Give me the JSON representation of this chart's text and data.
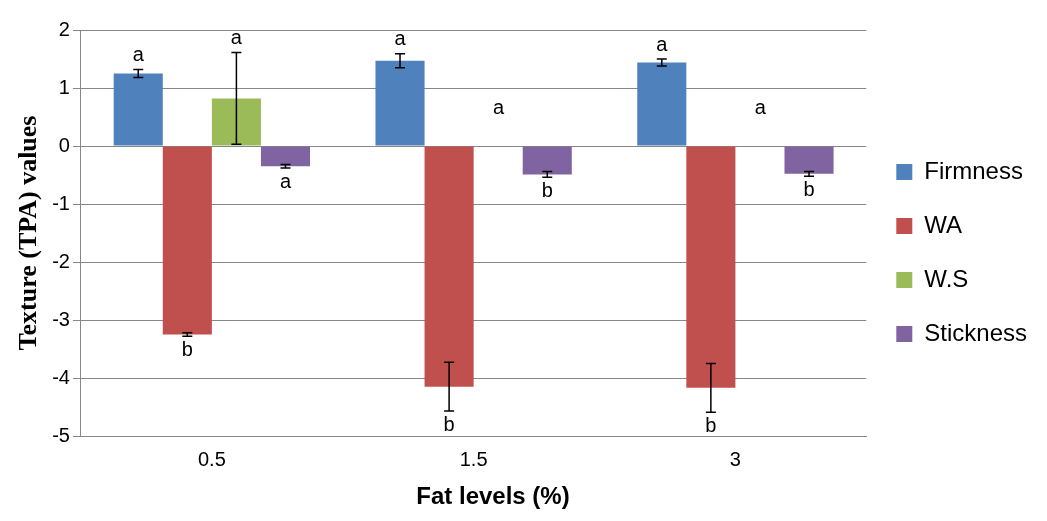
{
  "chart_data": {
    "type": "bar",
    "xlabel": "Fat levels (%)",
    "ylabel": "Texture (TPA) values",
    "categories": [
      "0.5",
      "1.5",
      "3"
    ],
    "series": [
      {
        "name": "Firmness",
        "color": "#4f81bd",
        "values": [
          1.25,
          1.47,
          1.44
        ],
        "errors": [
          0.07,
          0.12,
          0.06
        ],
        "value_labels": [
          "a",
          "a",
          "a"
        ]
      },
      {
        "name": "WA",
        "color": "#c0504d",
        "values": [
          -3.25,
          -4.15,
          -4.17
        ],
        "errors": [
          0.03,
          0.42,
          0.42
        ],
        "value_labels": [
          "b",
          "b",
          "b"
        ]
      },
      {
        "name": "W.S",
        "color": "#9bbb59",
        "values": [
          0.82,
          null,
          null
        ],
        "errors": [
          0.79,
          null,
          null
        ],
        "value_labels": [
          "a",
          null,
          null
        ]
      },
      {
        "name": "Stickness",
        "color": "#8064a2",
        "values": [
          -0.35,
          -0.49,
          -0.48
        ],
        "errors": [
          0.03,
          0.05,
          0.04
        ],
        "value_labels": [
          "a",
          "b",
          "b"
        ]
      }
    ],
    "annotations": [
      "a",
      "a"
    ],
    "ylim": [
      -5,
      2
    ],
    "yticks": [
      -5,
      -4,
      -3,
      -2,
      -1,
      0,
      1,
      2
    ],
    "grid": "y",
    "legend": "right"
  }
}
